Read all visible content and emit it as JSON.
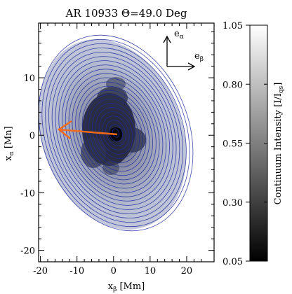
{
  "figure": {
    "title": "AR 10933 Θ=49.0 Deg",
    "x_axis": {
      "label_main": "x",
      "label_sub": "β",
      "label_unit": " [Mm]",
      "ticks": [
        -20,
        -10,
        0,
        10,
        20
      ],
      "range": [
        -20.5,
        27.5
      ]
    },
    "y_axis": {
      "label_main": "x",
      "label_sub": "α",
      "label_unit": " [Mn]",
      "ticks": [
        -20,
        -10,
        0,
        10
      ],
      "range": [
        -22,
        19.5
      ]
    },
    "basis": {
      "e_alpha_main": "e",
      "e_alpha_sub": "α",
      "e_beta_main": "e",
      "e_beta_sub": "β"
    },
    "colorbar": {
      "label_text": "Continuum Intensity [I/I",
      "label_sub": "qs",
      "label_close": "]",
      "ticks": [
        "1.05",
        "0.80",
        "0.55",
        "0.30",
        "0.05"
      ],
      "min": 0.05,
      "max": 1.05
    },
    "colors": {
      "contour": "#1f2a9a",
      "arrow": "#f26a1b",
      "axes": "#000000"
    }
  }
}
